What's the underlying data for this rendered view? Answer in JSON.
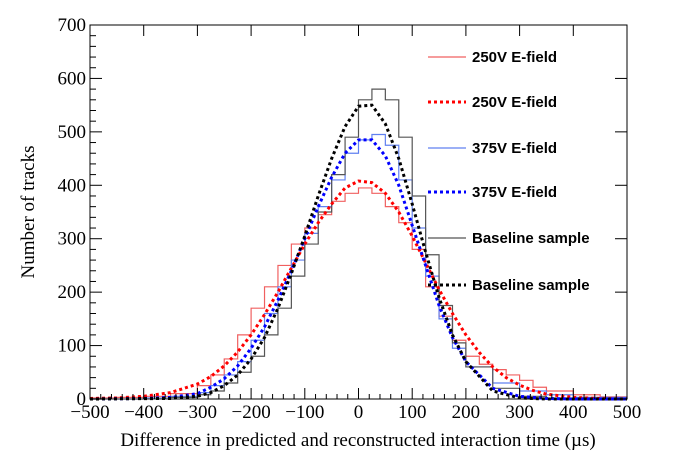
{
  "chart_data": {
    "type": "line",
    "title": "",
    "xlabel": "Difference in predicted and reconstructed interaction time (µs)",
    "ylabel": "Number of tracks",
    "xlim": [
      -500,
      500
    ],
    "ylim": [
      0,
      700
    ],
    "x_ticks": [
      -500,
      -400,
      -300,
      -200,
      -100,
      0,
      100,
      200,
      300,
      400,
      500
    ],
    "y_ticks": [
      0,
      100,
      200,
      300,
      400,
      500,
      600,
      700
    ],
    "grid": false,
    "legend_position": "top-right",
    "series": [
      {
        "name": "250V E-field",
        "style": "histogram",
        "color": "#f06060",
        "x": [
          -500,
          -450,
          -400,
          -350,
          -300,
          -275,
          -250,
          -225,
          -200,
          -175,
          -150,
          -125,
          -100,
          -75,
          -50,
          -25,
          0,
          25,
          50,
          75,
          100,
          125,
          150,
          175,
          200,
          225,
          250,
          275,
          300,
          325,
          350,
          400,
          450,
          500
        ],
        "values": [
          2,
          3,
          5,
          10,
          25,
          45,
          75,
          120,
          170,
          210,
          250,
          290,
          320,
          345,
          370,
          385,
          395,
          385,
          360,
          330,
          280,
          210,
          155,
          110,
          80,
          65,
          55,
          45,
          35,
          22,
          15,
          8,
          4,
          2
        ]
      },
      {
        "name": "250V E-field",
        "style": "fit-dotted",
        "color": "#ff0000",
        "x": [
          -500,
          -450,
          -400,
          -350,
          -300,
          -275,
          -250,
          -225,
          -200,
          -175,
          -150,
          -125,
          -100,
          -75,
          -50,
          -25,
          0,
          25,
          50,
          75,
          100,
          125,
          150,
          175,
          200,
          225,
          250,
          275,
          300,
          325,
          350,
          400,
          450,
          500
        ],
        "values": [
          1,
          2,
          5,
          12,
          28,
          42,
          62,
          88,
          120,
          158,
          200,
          245,
          290,
          330,
          365,
          395,
          408,
          405,
          385,
          350,
          305,
          255,
          205,
          160,
          120,
          87,
          60,
          40,
          26,
          16,
          9,
          3,
          1,
          0
        ]
      },
      {
        "name": "375V E-field",
        "style": "histogram",
        "color": "#6080f0",
        "x": [
          -500,
          -400,
          -350,
          -300,
          -275,
          -250,
          -225,
          -200,
          -175,
          -150,
          -125,
          -100,
          -75,
          -50,
          -25,
          0,
          25,
          50,
          75,
          100,
          125,
          150,
          175,
          200,
          250,
          300,
          350,
          400,
          500
        ],
        "values": [
          0,
          2,
          5,
          12,
          25,
          45,
          70,
          110,
          160,
          210,
          260,
          310,
          360,
          410,
          460,
          485,
          495,
          475,
          410,
          320,
          230,
          150,
          95,
          60,
          30,
          15,
          8,
          3,
          0
        ]
      },
      {
        "name": "375V E-field",
        "style": "fit-dotted",
        "color": "#0000ff",
        "x": [
          -500,
          -400,
          -350,
          -300,
          -275,
          -250,
          -225,
          -200,
          -175,
          -150,
          -125,
          -100,
          -75,
          -50,
          -25,
          0,
          25,
          50,
          75,
          100,
          125,
          150,
          175,
          200,
          250,
          300,
          350,
          400,
          500
        ],
        "values": [
          0,
          1,
          3,
          10,
          22,
          38,
          62,
          95,
          135,
          185,
          240,
          300,
          360,
          415,
          460,
          485,
          485,
          455,
          400,
          325,
          250,
          175,
          115,
          70,
          20,
          5,
          1,
          0,
          0
        ]
      },
      {
        "name": "Baseline sample",
        "style": "histogram",
        "color": "#555555",
        "x": [
          -500,
          -350,
          -300,
          -275,
          -250,
          -225,
          -200,
          -175,
          -150,
          -125,
          -100,
          -75,
          -50,
          -25,
          0,
          25,
          50,
          75,
          100,
          125,
          150,
          175,
          200,
          250,
          300,
          350,
          500
        ],
        "values": [
          0,
          3,
          8,
          15,
          30,
          50,
          80,
          120,
          170,
          230,
          290,
          350,
          420,
          490,
          560,
          580,
          560,
          490,
          380,
          270,
          175,
          105,
          60,
          20,
          5,
          1,
          0
        ]
      },
      {
        "name": "Baseline sample",
        "style": "fit-dotted",
        "color": "#000000",
        "x": [
          -500,
          -350,
          -300,
          -275,
          -250,
          -225,
          -200,
          -175,
          -150,
          -125,
          -100,
          -75,
          -50,
          -25,
          0,
          25,
          50,
          75,
          100,
          125,
          150,
          175,
          200,
          250,
          300,
          350,
          500
        ],
        "values": [
          0,
          1,
          5,
          12,
          25,
          45,
          75,
          115,
          170,
          235,
          305,
          380,
          450,
          510,
          548,
          550,
          515,
          450,
          365,
          275,
          190,
          120,
          70,
          15,
          2,
          0,
          0
        ]
      }
    ]
  }
}
